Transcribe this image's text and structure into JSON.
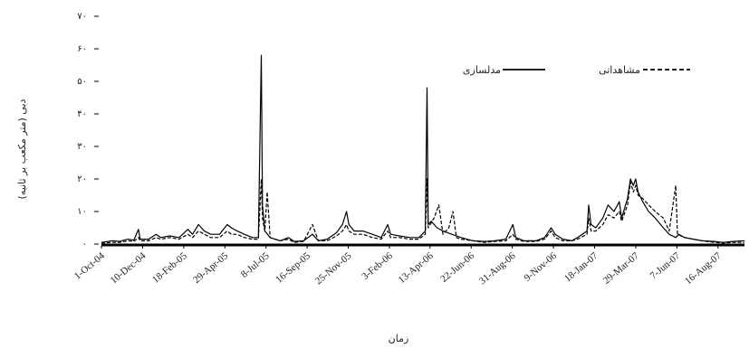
{
  "chart_data": {
    "type": "line",
    "title": "",
    "xlabel": "زمان",
    "ylabel": "دبی (متر مکعب بر ثانیه)",
    "ylim": [
      0,
      70
    ],
    "yticks": [
      0,
      10,
      20,
      30,
      40,
      50,
      60,
      70
    ],
    "ytick_labels": [
      "۰",
      "۱۰",
      "۲۰",
      "۳۰",
      "۴۰",
      "۵۰",
      "۶۰",
      "۷۰"
    ],
    "x_start": "2004-10-01",
    "x_end": "2007-09-30",
    "xtick_dates": [
      "2004-10-01",
      "2004-12-10",
      "2005-02-18",
      "2005-04-29",
      "2005-07-08",
      "2005-09-16",
      "2005-11-25",
      "2006-02-03",
      "2006-04-13",
      "2006-06-22",
      "2006-08-31",
      "2006-11-09",
      "2007-01-18",
      "2007-03-29",
      "2007-06-07",
      "2007-08-16"
    ],
    "xtick_labels": [
      "1-Oct-04",
      "10-Dec-04",
      "18-Feb-05",
      "29-Apr-05",
      "8-Jul-05",
      "16-Sep-05",
      "25-Nov-05",
      "3-Feb-06",
      "13-Apr-06",
      "22-Jun-06",
      "31-Aug-06",
      "9-Nov-06",
      "18-Jan-07",
      "29-Mar-07",
      "7-Jun-07",
      "16-Aug-07"
    ],
    "grid": false,
    "legend_position": "top-right",
    "series": [
      {
        "name": "مدلسازی",
        "style": "solid",
        "color": "#000000",
        "points": [
          [
            "2004-10-01",
            0.5
          ],
          [
            "2004-10-20",
            1
          ],
          [
            "2004-11-01",
            0.8
          ],
          [
            "2004-11-15",
            1.5
          ],
          [
            "2004-11-25",
            1.2
          ],
          [
            "2004-12-03",
            4.5
          ],
          [
            "2004-12-06",
            1.5
          ],
          [
            "2004-12-20",
            1.5
          ],
          [
            "2005-01-02",
            3
          ],
          [
            "2005-01-10",
            2
          ],
          [
            "2005-01-25",
            2.5
          ],
          [
            "2005-02-10",
            2
          ],
          [
            "2005-02-25",
            4.5
          ],
          [
            "2005-03-05",
            3
          ],
          [
            "2005-03-15",
            6
          ],
          [
            "2005-03-25",
            4
          ],
          [
            "2005-04-05",
            3
          ],
          [
            "2005-04-20",
            3
          ],
          [
            "2005-05-03",
            6
          ],
          [
            "2005-05-10",
            5
          ],
          [
            "2005-05-20",
            4
          ],
          [
            "2005-06-01",
            3
          ],
          [
            "2005-06-15",
            2
          ],
          [
            "2005-06-25",
            2
          ],
          [
            "2005-06-30",
            58
          ],
          [
            "2005-07-02",
            12
          ],
          [
            "2005-07-06",
            4
          ],
          [
            "2005-07-15",
            2
          ],
          [
            "2005-08-01",
            1
          ],
          [
            "2005-08-15",
            2
          ],
          [
            "2005-08-25",
            0.8
          ],
          [
            "2005-09-10",
            1
          ],
          [
            "2005-09-25",
            3
          ],
          [
            "2005-10-05",
            1
          ],
          [
            "2005-10-20",
            1.5
          ],
          [
            "2005-11-05",
            3.5
          ],
          [
            "2005-11-15",
            6
          ],
          [
            "2005-11-22",
            10
          ],
          [
            "2005-11-26",
            6
          ],
          [
            "2005-12-05",
            4
          ],
          [
            "2005-12-20",
            4
          ],
          [
            "2006-01-05",
            3
          ],
          [
            "2006-01-20",
            2
          ],
          [
            "2006-01-31",
            6
          ],
          [
            "2006-02-05",
            3
          ],
          [
            "2006-02-20",
            2.5
          ],
          [
            "2006-03-10",
            2
          ],
          [
            "2006-03-25",
            2
          ],
          [
            "2006-04-05",
            4
          ],
          [
            "2006-04-08",
            48
          ],
          [
            "2006-04-10",
            6
          ],
          [
            "2006-04-15",
            7
          ],
          [
            "2006-04-25",
            5
          ],
          [
            "2006-05-05",
            4
          ],
          [
            "2006-05-20",
            3
          ],
          [
            "2006-06-05",
            2
          ],
          [
            "2006-06-25",
            1
          ],
          [
            "2006-07-15",
            0.8
          ],
          [
            "2006-08-01",
            1
          ],
          [
            "2006-08-20",
            1.5
          ],
          [
            "2006-09-01",
            6
          ],
          [
            "2006-09-06",
            2
          ],
          [
            "2006-09-20",
            1
          ],
          [
            "2006-10-10",
            1
          ],
          [
            "2006-10-25",
            2
          ],
          [
            "2006-11-05",
            5
          ],
          [
            "2006-11-12",
            3
          ],
          [
            "2006-11-25",
            1.5
          ],
          [
            "2006-12-10",
            1
          ],
          [
            "2006-12-20",
            2
          ],
          [
            "2007-01-05",
            4
          ],
          [
            "2007-01-08",
            12
          ],
          [
            "2007-01-12",
            6
          ],
          [
            "2007-01-20",
            5
          ],
          [
            "2007-02-01",
            8
          ],
          [
            "2007-02-10",
            12
          ],
          [
            "2007-02-20",
            10
          ],
          [
            "2007-03-01",
            13
          ],
          [
            "2007-03-05",
            8
          ],
          [
            "2007-03-15",
            14
          ],
          [
            "2007-03-20",
            20
          ],
          [
            "2007-03-25",
            18
          ],
          [
            "2007-03-29",
            20
          ],
          [
            "2007-04-02",
            16
          ],
          [
            "2007-04-10",
            13
          ],
          [
            "2007-04-20",
            10
          ],
          [
            "2007-05-01",
            8
          ],
          [
            "2007-05-15",
            5
          ],
          [
            "2007-05-25",
            3
          ],
          [
            "2007-06-05",
            2
          ],
          [
            "2007-06-10",
            3
          ],
          [
            "2007-06-20",
            2
          ],
          [
            "2007-07-05",
            1.5
          ],
          [
            "2007-07-20",
            1
          ],
          [
            "2007-08-10",
            0.8
          ],
          [
            "2007-08-25",
            0.5
          ],
          [
            "2007-09-10",
            0.8
          ],
          [
            "2007-09-30",
            1
          ]
        ]
      },
      {
        "name": "مشاهداتی",
        "style": "dashed",
        "color": "#000000",
        "points": [
          [
            "2004-10-01",
            0.3
          ],
          [
            "2004-10-20",
            0.5
          ],
          [
            "2004-11-01",
            0.5
          ],
          [
            "2004-11-15",
            1
          ],
          [
            "2004-11-25",
            0.8
          ],
          [
            "2004-12-03",
            2
          ],
          [
            "2004-12-06",
            1
          ],
          [
            "2004-12-20",
            1
          ],
          [
            "2005-01-02",
            2
          ],
          [
            "2005-01-10",
            1.5
          ],
          [
            "2005-01-25",
            2
          ],
          [
            "2005-02-10",
            1.5
          ],
          [
            "2005-02-25",
            3
          ],
          [
            "2005-03-05",
            2
          ],
          [
            "2005-03-15",
            4
          ],
          [
            "2005-03-25",
            3
          ],
          [
            "2005-04-05",
            2
          ],
          [
            "2005-04-20",
            2
          ],
          [
            "2005-05-03",
            4
          ],
          [
            "2005-05-10",
            3
          ],
          [
            "2005-05-20",
            3
          ],
          [
            "2005-06-01",
            2
          ],
          [
            "2005-06-15",
            1.5
          ],
          [
            "2005-06-25",
            1.5
          ],
          [
            "2005-06-30",
            20
          ],
          [
            "2005-07-02",
            8
          ],
          [
            "2005-07-06",
            4
          ],
          [
            "2005-07-10",
            16
          ],
          [
            "2005-07-15",
            2
          ],
          [
            "2005-08-01",
            1
          ],
          [
            "2005-08-15",
            1.5
          ],
          [
            "2005-08-25",
            0.5
          ],
          [
            "2005-09-10",
            0.8
          ],
          [
            "2005-09-25",
            6
          ],
          [
            "2005-10-05",
            1
          ],
          [
            "2005-10-20",
            1
          ],
          [
            "2005-11-05",
            2.5
          ],
          [
            "2005-11-15",
            4
          ],
          [
            "2005-11-22",
            6
          ],
          [
            "2005-11-26",
            4
          ],
          [
            "2005-12-05",
            3
          ],
          [
            "2005-12-20",
            3
          ],
          [
            "2006-01-05",
            2
          ],
          [
            "2006-01-20",
            1.5
          ],
          [
            "2006-01-31",
            4
          ],
          [
            "2006-02-05",
            2
          ],
          [
            "2006-02-20",
            2
          ],
          [
            "2006-03-10",
            1.5
          ],
          [
            "2006-03-25",
            1.5
          ],
          [
            "2006-04-05",
            3
          ],
          [
            "2006-04-08",
            20
          ],
          [
            "2006-04-10",
            5
          ],
          [
            "2006-04-20",
            8
          ],
          [
            "2006-04-28",
            12
          ],
          [
            "2006-05-05",
            3
          ],
          [
            "2006-05-15",
            5
          ],
          [
            "2006-05-22",
            10
          ],
          [
            "2006-05-28",
            2
          ],
          [
            "2006-06-05",
            1.5
          ],
          [
            "2006-06-25",
            1
          ],
          [
            "2006-07-15",
            0.5
          ],
          [
            "2006-08-01",
            0.8
          ],
          [
            "2006-08-20",
            1
          ],
          [
            "2006-09-01",
            3
          ],
          [
            "2006-09-06",
            1.5
          ],
          [
            "2006-09-20",
            0.8
          ],
          [
            "2006-10-10",
            0.8
          ],
          [
            "2006-10-25",
            1.5
          ],
          [
            "2006-11-05",
            4
          ],
          [
            "2006-11-12",
            2
          ],
          [
            "2006-11-25",
            1
          ],
          [
            "2006-12-10",
            1
          ],
          [
            "2006-12-20",
            1.5
          ],
          [
            "2007-01-05",
            3
          ],
          [
            "2007-01-08",
            8
          ],
          [
            "2007-01-12",
            4
          ],
          [
            "2007-01-20",
            4
          ],
          [
            "2007-02-01",
            6
          ],
          [
            "2007-02-10",
            9
          ],
          [
            "2007-02-20",
            8
          ],
          [
            "2007-03-01",
            10
          ],
          [
            "2007-03-05",
            7
          ],
          [
            "2007-03-15",
            12
          ],
          [
            "2007-03-20",
            19
          ],
          [
            "2007-03-25",
            16
          ],
          [
            "2007-03-29",
            18
          ],
          [
            "2007-04-02",
            15
          ],
          [
            "2007-04-10",
            14
          ],
          [
            "2007-04-20",
            12
          ],
          [
            "2007-05-01",
            10
          ],
          [
            "2007-05-15",
            8
          ],
          [
            "2007-05-25",
            4
          ],
          [
            "2007-06-05",
            18
          ],
          [
            "2007-06-08",
            3
          ],
          [
            "2007-06-20",
            2
          ],
          [
            "2007-07-05",
            1.5
          ],
          [
            "2007-07-20",
            1
          ],
          [
            "2007-08-10",
            0.5
          ],
          [
            "2007-08-25",
            0.3
          ],
          [
            "2007-09-10",
            0.5
          ],
          [
            "2007-09-30",
            0.5
          ]
        ]
      }
    ]
  }
}
